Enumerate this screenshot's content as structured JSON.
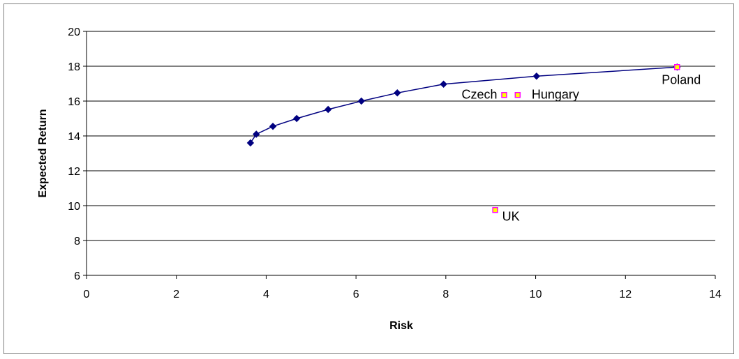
{
  "chart_data": {
    "type": "scatter",
    "xlabel": "Risk",
    "ylabel": "Expected Return",
    "xlim": [
      0,
      14
    ],
    "ylim": [
      6,
      20
    ],
    "x_ticks": [
      "0",
      "2",
      "4",
      "6",
      "8",
      "10",
      "12",
      "14"
    ],
    "y_ticks": [
      "6",
      "8",
      "10",
      "12",
      "14",
      "16",
      "18",
      "20"
    ],
    "grid": "horizontal",
    "series": [
      {
        "color": "#000080",
        "marker": "diamond",
        "connected": true,
        "points": [
          {
            "x": 3.65,
            "y": 13.6
          },
          {
            "x": 3.78,
            "y": 14.1
          },
          {
            "x": 4.15,
            "y": 14.55
          },
          {
            "x": 4.68,
            "y": 15.0
          },
          {
            "x": 5.38,
            "y": 15.52
          },
          {
            "x": 6.12,
            "y": 16.0
          },
          {
            "x": 6.92,
            "y": 16.47
          },
          {
            "x": 7.95,
            "y": 16.97
          },
          {
            "x": 10.02,
            "y": 17.43
          },
          {
            "x": 13.15,
            "y": 17.95
          }
        ]
      },
      {
        "color": "#ff00ff",
        "fill": "#ffff00",
        "marker": "square",
        "connected": false,
        "points": [
          {
            "x": 13.15,
            "y": 17.95,
            "label": "Poland"
          },
          {
            "x": 9.3,
            "y": 16.35,
            "label": "Czech"
          },
          {
            "x": 9.6,
            "y": 16.35,
            "label": "Hungary"
          },
          {
            "x": 9.1,
            "y": 9.75,
            "label": "UK"
          }
        ]
      }
    ]
  }
}
